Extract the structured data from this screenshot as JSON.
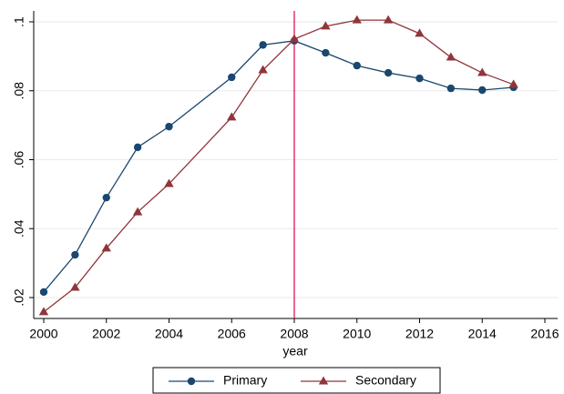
{
  "chart_data": {
    "type": "line",
    "x_label": "year",
    "x": [
      2000,
      2001,
      2002,
      2003,
      2004,
      2006,
      2007,
      2008,
      2009,
      2010,
      2011,
      2012,
      2013,
      2014,
      2015
    ],
    "series": [
      {
        "name": "Primary",
        "color": "#1a476f",
        "marker": "circle",
        "values": [
          0.0216,
          0.0324,
          0.049,
          0.0636,
          0.0696,
          0.0839,
          0.0933,
          0.0945,
          0.091,
          0.0873,
          0.0852,
          0.0836,
          0.0807,
          0.0802,
          0.081
        ]
      },
      {
        "name": "Secondary",
        "color": "#90353b",
        "marker": "triangle",
        "values": [
          0.0158,
          0.0229,
          0.0343,
          0.0448,
          0.053,
          0.0723,
          0.086,
          0.095,
          0.0987,
          0.1005,
          0.1005,
          0.0966,
          0.0897,
          0.0852,
          0.0818
        ]
      }
    ],
    "xlim": [
      2000,
      2016
    ],
    "xticks": [
      2000,
      2002,
      2004,
      2006,
      2008,
      2010,
      2012,
      2014,
      2016
    ],
    "ylim": [
      0.02,
      0.1
    ],
    "yticks": [
      {
        "value": 0.02,
        "label": ".02"
      },
      {
        "value": 0.04,
        "label": ".04"
      },
      {
        "value": 0.06,
        "label": ".06"
      },
      {
        "value": 0.08,
        "label": ".08"
      },
      {
        "value": 0.1,
        "label": ".1"
      }
    ],
    "grid": true,
    "reference_line": {
      "x": 2008,
      "color": "#e0004d"
    },
    "legend": "bottom"
  }
}
